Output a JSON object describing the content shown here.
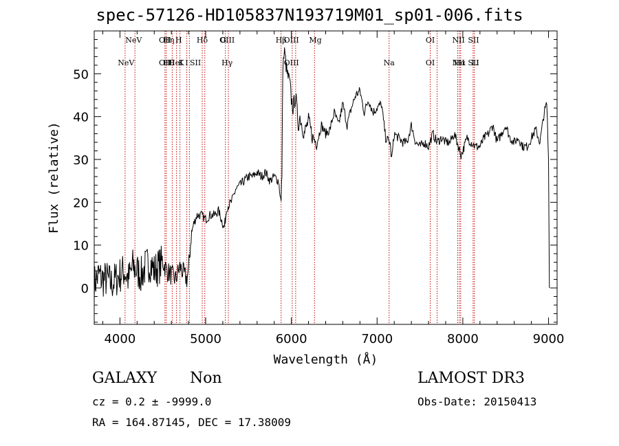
{
  "chart_data": {
    "type": "line",
    "title": "spec-57126-HD105837N193719M01_sp01-006.fits",
    "xlabel": "Wavelength (Å)",
    "ylabel": "Flux (relative)",
    "xlim": [
      3700,
      9100
    ],
    "ylim": [
      -8.5,
      60
    ],
    "xticks": [
      4000,
      5000,
      6000,
      7000,
      8000,
      9000
    ],
    "yticks": [
      0,
      10,
      20,
      30,
      40,
      50
    ],
    "grid": false,
    "series": [
      {
        "x": [
          3700,
          3750,
          3800,
          3850,
          3900,
          3950,
          4000,
          4050,
          4100,
          4150,
          4200,
          4250,
          4300,
          4350,
          4400,
          4450,
          4500,
          4550,
          4600,
          4650,
          4700,
          4750,
          4780,
          4800,
          4830,
          4860,
          4900,
          4950,
          5000,
          5050,
          5100,
          5150,
          5200,
          5215,
          5230,
          5250,
          5300,
          5350,
          5400,
          5450,
          5500,
          5550,
          5600,
          5650,
          5700,
          5750,
          5800,
          5850,
          5880,
          5890,
          5900,
          5920,
          5950,
          5980,
          6000,
          6020,
          6050,
          6080,
          6100,
          6150,
          6200,
          6250,
          6300,
          6350,
          6400,
          6450,
          6500,
          6550,
          6600,
          6650,
          6700,
          6750,
          6800,
          6850,
          6900,
          6950,
          7000,
          7050,
          7100,
          7150,
          7170,
          7200,
          7250,
          7300,
          7350,
          7400,
          7450,
          7500,
          7550,
          7600,
          7650,
          7700,
          7750,
          7800,
          7850,
          7900,
          7950,
          7980,
          8000,
          8050,
          8100,
          8150,
          8200,
          8250,
          8300,
          8350,
          8400,
          8450,
          8500,
          8550,
          8600,
          8650,
          8700,
          8750,
          8800,
          8850,
          8900,
          8950,
          8980,
          9000,
          9010
        ],
        "y": [
          1,
          3,
          2,
          2,
          1,
          2,
          3,
          4,
          2,
          5,
          4,
          3,
          5,
          6,
          4,
          5,
          6,
          4,
          3,
          2,
          5,
          3,
          2,
          4,
          12,
          15,
          17,
          17,
          16,
          17,
          17,
          18,
          15,
          14,
          16,
          19,
          20,
          23,
          24,
          25,
          26,
          26,
          27,
          26,
          27,
          25,
          26,
          25,
          20,
          27,
          52,
          55,
          50,
          48,
          44,
          42,
          45,
          38,
          40,
          36,
          39,
          35,
          34,
          38,
          36,
          37,
          41,
          38,
          43,
          38,
          42,
          45,
          46,
          41,
          44,
          41,
          42,
          43,
          35,
          34,
          30,
          36,
          35,
          34,
          34,
          38,
          34,
          33,
          34,
          33,
          36,
          34,
          35,
          34,
          34,
          36,
          33,
          31,
          32,
          35,
          34,
          33,
          33,
          35,
          36,
          38,
          34,
          36,
          38,
          35,
          34,
          35,
          33,
          33,
          35,
          37,
          34,
          41,
          43,
          30,
          0
        ]
      }
    ],
    "line_labels": [
      {
        "x": 4071,
        "top": "",
        "bottom": "NeV"
      },
      {
        "x": 4160,
        "top": "NeV",
        "bottom": ""
      },
      {
        "x": 4525,
        "top": "OII",
        "bottom": "OII"
      },
      {
        "x": 4570,
        "top": "Hη",
        "bottom": "Hθ"
      },
      {
        "x": 4650,
        "top": "",
        "bottom": "HeI"
      },
      {
        "x": 4685,
        "top": "H",
        "bottom": ""
      },
      {
        "x": 4715,
        "top": "",
        "bottom": "K"
      },
      {
        "x": 4780,
        "top": "",
        "bottom": "I"
      },
      {
        "x": 4880,
        "top": "",
        "bottom": "SII"
      },
      {
        "x": 4960,
        "top": "Hδ",
        "bottom": ""
      },
      {
        "x": 5205,
        "top": "G",
        "bottom": ""
      },
      {
        "x": 5250,
        "top": "OIII",
        "bottom": "Hγ"
      },
      {
        "x": 5880,
        "top": "Hβ",
        "bottom": ""
      },
      {
        "x": 6000,
        "top": "OIII",
        "bottom": "OIII"
      },
      {
        "x": 6280,
        "top": "Mg",
        "bottom": ""
      },
      {
        "x": 7140,
        "top": "",
        "bottom": "Na"
      },
      {
        "x": 7620,
        "top": "OI",
        "bottom": "OI"
      },
      {
        "x": 7950,
        "top": "NII",
        "bottom": "NII"
      },
      {
        "x": 7965,
        "top": "",
        "bottom": "Hα"
      },
      {
        "x": 8125,
        "top": "SII",
        "bottom": "SII"
      },
      {
        "x": 8145,
        "top": "",
        "bottom": "Li"
      }
    ],
    "line_positions": [
      4060,
      4175,
      4525,
      4540,
      4610,
      4660,
      4700,
      4780,
      4810,
      4960,
      4990,
      5230,
      5265,
      5880,
      6010,
      6050,
      6270,
      7140,
      7620,
      7700,
      7940,
      7960,
      7975,
      8120,
      8135
    ]
  },
  "info": {
    "object_type": "GALAXY",
    "subclass": "Non",
    "survey": "LAMOST DR3",
    "cz_line": "cz = 0.2 ± -9999.0",
    "obs_date_line": "Obs-Date: 20150413",
    "coord_line": "RA = 164.87145, DEC =  17.38009"
  }
}
